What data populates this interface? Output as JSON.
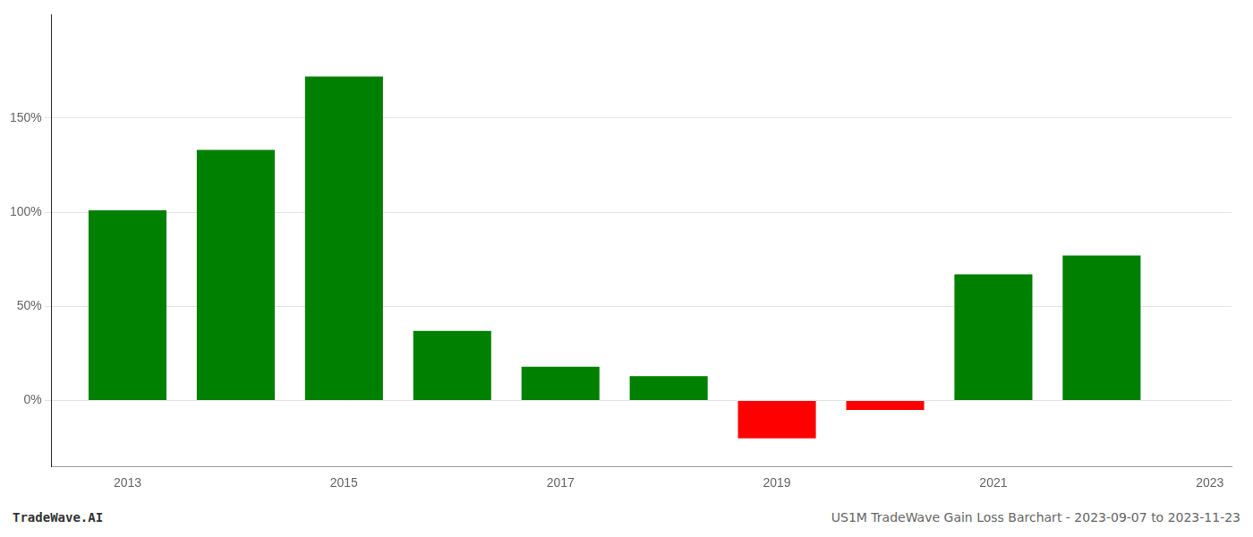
{
  "chart_data": {
    "type": "bar",
    "x": [
      2013,
      2014,
      2015,
      2016,
      2017,
      2018,
      2019,
      2020,
      2021,
      2022
    ],
    "values": [
      1.01,
      1.33,
      1.72,
      0.37,
      0.18,
      0.13,
      -0.2,
      -0.05,
      0.67,
      0.77
    ],
    "colors": [
      "#008000",
      "#008000",
      "#008000",
      "#008000",
      "#008000",
      "#008000",
      "#ff0000",
      "#ff0000",
      "#008000",
      "#008000"
    ],
    "xlim": [
      2012.3,
      2023.2
    ],
    "xticks": [
      2013,
      2015,
      2017,
      2019,
      2021,
      2023
    ],
    "ylim": [
      -0.35,
      2.05
    ],
    "yticks": [
      {
        "value": 0.0,
        "label": "0%"
      },
      {
        "value": 0.5,
        "label": "50%"
      },
      {
        "value": 1.0,
        "label": "100%"
      },
      {
        "value": 1.5,
        "label": "150%"
      }
    ],
    "grid": true,
    "annotations": [
      "TradeWave.AI",
      "US1M TradeWave Gain Loss Barchart - 2023-09-07 to 2023-11-23"
    ]
  }
}
